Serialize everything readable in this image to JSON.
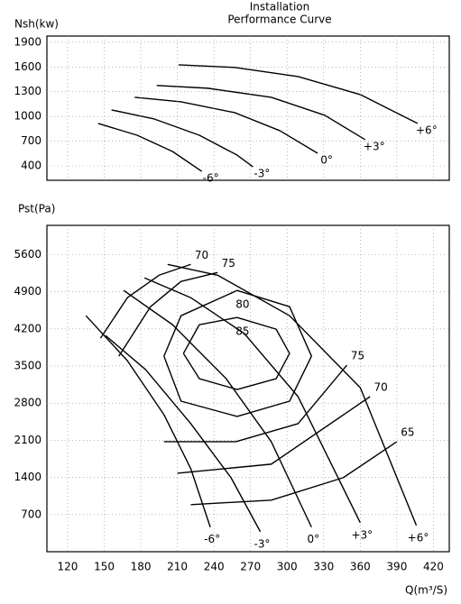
{
  "chart_data": [
    {
      "type": "line",
      "title": [
        "Installation",
        "Performance Curve"
      ],
      "ylabel": "Nsh(kw)",
      "xlim": [
        103,
        433
      ],
      "ylim": [
        225,
        1975
      ],
      "yticks": [
        400,
        700,
        1000,
        1300,
        1600,
        1900
      ],
      "grid": true,
      "series": [
        {
          "name": "-6°",
          "color": "#000",
          "x": [
            145,
            177,
            206,
            230
          ],
          "values": [
            915,
            772,
            575,
            334
          ]
        },
        {
          "name": "-3°",
          "color": "#000",
          "x": [
            156,
            191,
            228,
            259,
            272
          ],
          "values": [
            1079,
            969,
            772,
            531,
            389
          ]
        },
        {
          "name": "0°",
          "color": "#000",
          "x": [
            175,
            213,
            257,
            294,
            325
          ],
          "values": [
            1232,
            1177,
            1046,
            827,
            553
          ]
        },
        {
          "name": "+3°",
          "color": "#000",
          "x": [
            193,
            235,
            287,
            331,
            364
          ],
          "values": [
            1375,
            1342,
            1232,
            1013,
            718
          ]
        },
        {
          "name": "+6°",
          "color": "#000",
          "x": [
            211,
            257,
            309,
            360,
            407
          ],
          "values": [
            1626,
            1594,
            1484,
            1265,
            915
          ]
        }
      ]
    },
    {
      "type": "line",
      "ylabel": "Pst(Pa)",
      "xlabel": "Q(m³/S)",
      "xlim": [
        103,
        433
      ],
      "ylim": [
        0,
        6150
      ],
      "xticks": [
        120,
        150,
        180,
        210,
        240,
        270,
        300,
        330,
        360,
        390,
        420
      ],
      "yticks": [
        700,
        1400,
        2100,
        2800,
        3500,
        4200,
        4900,
        5600
      ],
      "grid": true,
      "series": [
        {
          "name": "-6°",
          "color": "#000",
          "x": [
            135,
            169,
            199,
            221,
            237
          ],
          "values": [
            4448,
            3600,
            2583,
            1565,
            463
          ]
        },
        {
          "name": "-3°",
          "color": "#000",
          "x": [
            151,
            184,
            221,
            254,
            278
          ],
          "values": [
            4075,
            3431,
            2413,
            1395,
            378
          ]
        },
        {
          "name": "0°",
          "color": "#000",
          "x": [
            166,
            206,
            250,
            287,
            320
          ],
          "values": [
            4923,
            4279,
            3261,
            2074,
            463
          ]
        },
        {
          "name": "+3°",
          "color": "#000",
          "x": [
            183,
            221,
            265,
            309,
            360
          ],
          "values": [
            5160,
            4787,
            4109,
            2922,
            547
          ]
        },
        {
          "name": "+6°",
          "color": "#000",
          "x": [
            202,
            243,
            302,
            360,
            406
          ],
          "values": [
            5415,
            5211,
            4448,
            3092,
            496
          ]
        }
      ],
      "efficiency": [
        {
          "name": "70",
          "color": "#000",
          "x": [
            147,
            169,
            195,
            221,
            null,
            210,
            287,
            368
          ],
          "values": [
            4024,
            4787,
            5211,
            5415,
            null,
            1480,
            1650,
            2922
          ]
        },
        {
          "name": "75",
          "color": "#000",
          "x": [
            162,
            188,
            213,
            243,
            null,
            199,
            258,
            309,
            349
          ],
          "values": [
            3685,
            4618,
            5093,
            5262,
            null,
            2074,
            2074,
            2413,
            3515
          ]
        },
        {
          "name": "65",
          "color": "#000",
          "x": [
            221,
            287,
            346,
            390
          ],
          "values": [
            887,
            972,
            1395,
            2074
          ]
        },
        {
          "name": "80",
          "color": "#000",
          "x": [
            199,
            213,
            259,
            302,
            320,
            302,
            259,
            213,
            199
          ],
          "values": [
            3685,
            4448,
            4923,
            4618,
            3685,
            2837,
            2549,
            2837,
            3685
          ]
        },
        {
          "name": "85",
          "color": "#000",
          "x": [
            215,
            228,
            259,
            291,
            302,
            291,
            259,
            228,
            215
          ],
          "values": [
            3736,
            4279,
            4414,
            4194,
            3736,
            3261,
            3057,
            3261,
            3736
          ]
        }
      ]
    }
  ]
}
